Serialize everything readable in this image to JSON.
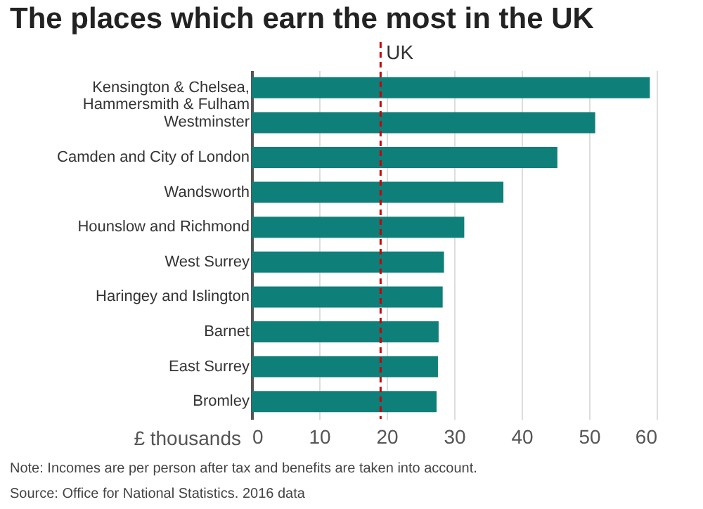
{
  "chart_data": {
    "type": "bar",
    "orientation": "horizontal",
    "title": "The places which earn the most in the UK",
    "xlabel": "£ thousands",
    "categories": [
      "Kensington & Chelsea, Hammersmith & Fulham",
      "Westminster",
      "Camden and City of London",
      "Wandsworth",
      "Hounslow and Richmond",
      "West Surrey",
      "Haringey and Islington",
      "Barnet",
      "East Surrey",
      "Bromley"
    ],
    "values": [
      59.0,
      50.9,
      45.3,
      37.3,
      31.5,
      28.5,
      28.3,
      27.7,
      27.6,
      27.4
    ],
    "color": "#0f7f7a",
    "xlim": [
      0,
      60
    ],
    "xticks": [
      0,
      10,
      20,
      30,
      40,
      50,
      60
    ],
    "grid": "x",
    "ref_lines": [
      {
        "axis": "x",
        "value": 19.1,
        "label": "UK",
        "color": "#cc0000",
        "line_style": "dashed"
      }
    ],
    "annotations": [
      "Note: Incomes are per person after tax and benefits are taken into account.",
      "Source: Office for National Statistics. 2016 data"
    ]
  }
}
